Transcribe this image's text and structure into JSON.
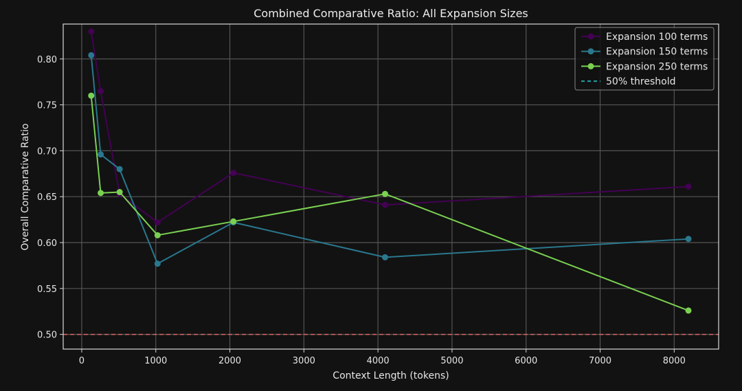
{
  "chart_data": {
    "type": "line",
    "title": "Combined Comparative Ratio: All Expansion Sizes",
    "xlabel": "Context Length (tokens)",
    "ylabel": "Overall Comparative Ratio",
    "xlim": [
      -250,
      8600
    ],
    "ylim": [
      0.484,
      0.838
    ],
    "xticks": [
      0,
      1000,
      2000,
      3000,
      4000,
      5000,
      6000,
      7000,
      8000
    ],
    "yticks": [
      0.5,
      0.55,
      0.6,
      0.65,
      0.7,
      0.75,
      0.8
    ],
    "grid": true,
    "legend_position": "top-right",
    "series": [
      {
        "name": "Expansion 100 terms",
        "color": "#440154",
        "x": [
          128,
          256,
          512,
          1024,
          2048,
          4096,
          8192
        ],
        "y": [
          0.83,
          0.765,
          0.653,
          0.622,
          0.676,
          0.641,
          0.661
        ]
      },
      {
        "name": "Expansion 150 terms",
        "color": "#2a788e",
        "x": [
          128,
          256,
          512,
          1024,
          2048,
          4096,
          8192
        ],
        "y": [
          0.804,
          0.696,
          0.68,
          0.577,
          0.622,
          0.584,
          0.604
        ]
      },
      {
        "name": "Expansion 250 terms",
        "color": "#7ad151",
        "x": [
          128,
          256,
          512,
          1024,
          2048,
          4096,
          8192
        ],
        "y": [
          0.76,
          0.654,
          0.655,
          0.608,
          0.623,
          0.653,
          0.526
        ]
      }
    ],
    "threshold": {
      "name": "50% threshold",
      "y": 0.5,
      "line_color": "#e06666",
      "legend_color": "#22a2a8"
    },
    "colors": {
      "background": "#121212",
      "grid": "#555555",
      "frame": "#d9d9d9",
      "legend_bg": "#121212",
      "legend_border": "#888888"
    }
  }
}
